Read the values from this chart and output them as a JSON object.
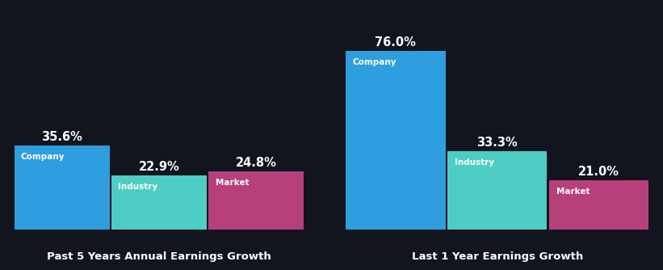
{
  "background_color": "#12151e",
  "chart1": {
    "title": "Past 5 Years Annual Earnings Growth",
    "categories": [
      "Company",
      "Industry",
      "Market"
    ],
    "values": [
      35.6,
      22.9,
      24.8
    ],
    "colors": [
      "#2e9edf",
      "#4ecdc4",
      "#b5407a"
    ]
  },
  "chart2": {
    "title": "Last 1 Year Earnings Growth",
    "categories": [
      "Company",
      "Industry",
      "Market"
    ],
    "values": [
      76.0,
      33.3,
      21.0
    ],
    "colors": [
      "#2e9edf",
      "#4ecdc4",
      "#b5407a"
    ]
  },
  "text_color": "#ffffff",
  "value_fontsize": 10.5,
  "label_fontsize": 7.5,
  "title_fontsize": 9.5,
  "bar_width": 0.98,
  "global_max": 76.0
}
